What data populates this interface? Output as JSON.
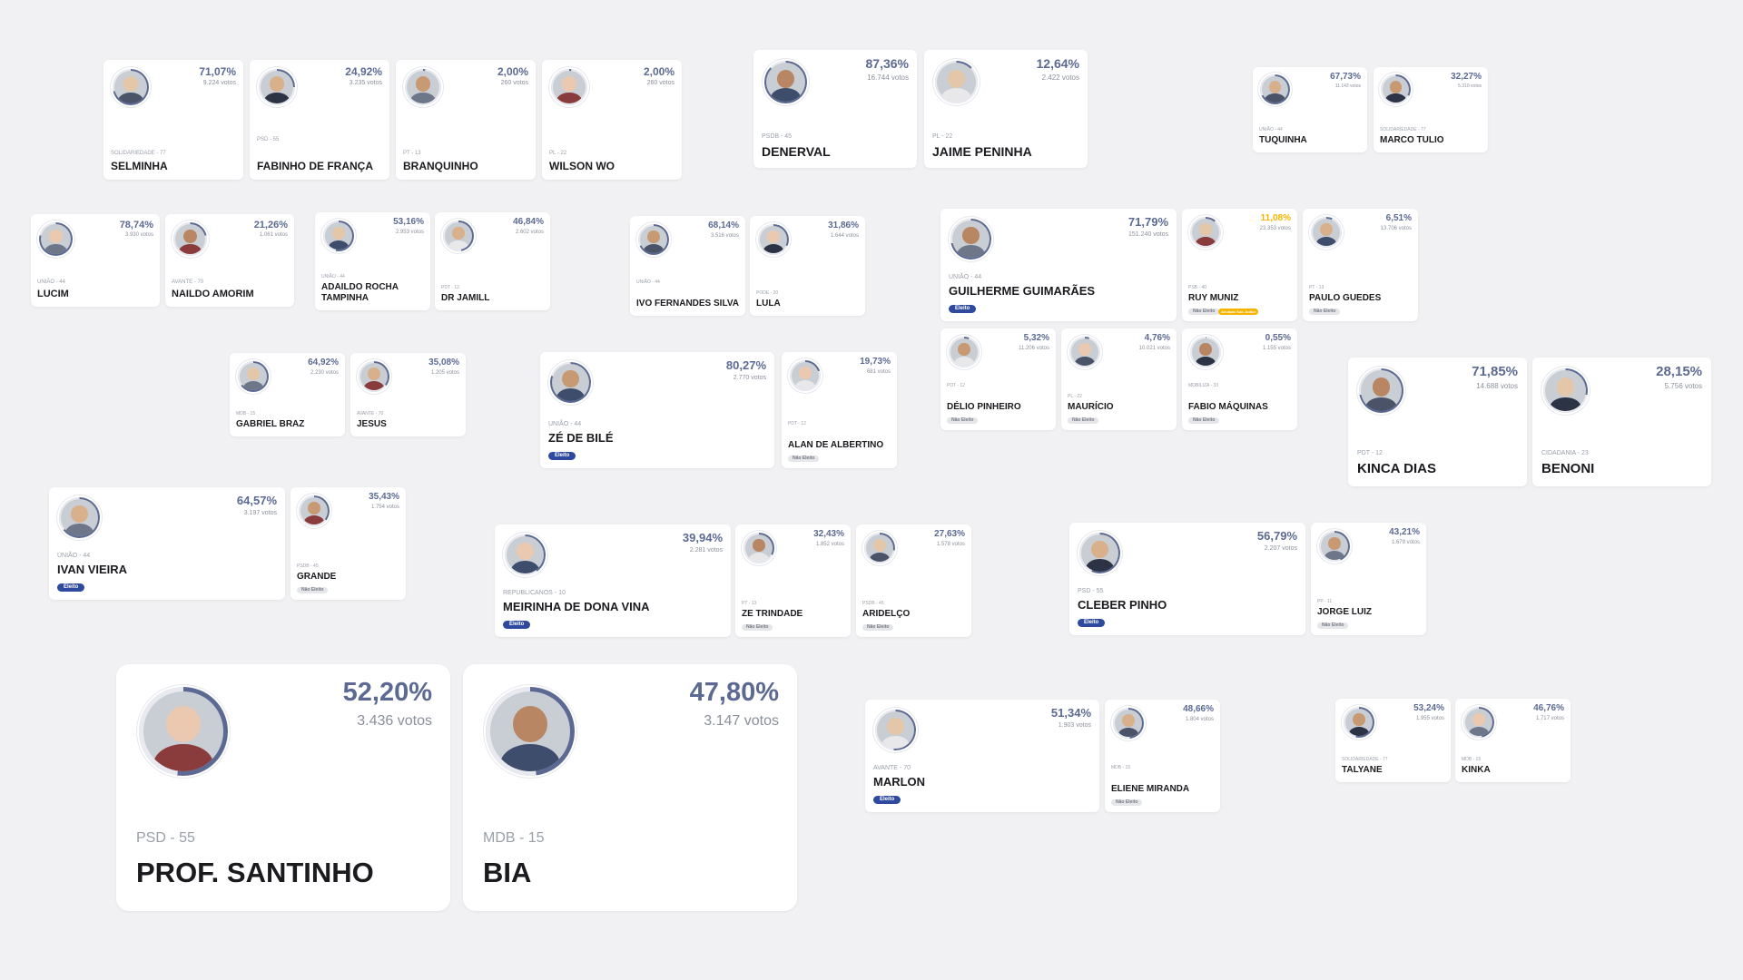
{
  "colors": {
    "background": "#f1f1f3",
    "card": "#ffffff",
    "percentage": "#5c6a93",
    "name": "#1b1b1f",
    "eleito_badge": "#2e4a9e",
    "nao_eleito_badge": "#e5e6ea",
    "amarelo": "#f4b400"
  },
  "cards": [
    {
      "id": "selminha",
      "name": "SELMINHA",
      "party": "SOLIDARIEDADE - 77",
      "pct": "71,07%",
      "votes": "9.224 votos",
      "share": 0.7107
    },
    {
      "id": "fabinho",
      "name": "FABINHO DE FRANÇA",
      "party": "PSD - 55",
      "pct": "24,92%",
      "votes": "3.235 votos",
      "share": 0.2492
    },
    {
      "id": "branquinho",
      "name": "BRANQUINHO",
      "party": "PT - 13",
      "pct": "2,00%",
      "votes": "260 votos",
      "share": 0.02
    },
    {
      "id": "wilson",
      "name": "WILSON WO",
      "party": "PL - 22",
      "pct": "2,00%",
      "votes": "260 votos",
      "share": 0.02
    },
    {
      "id": "denerval",
      "name": "DENERVAL",
      "party": "PSDB - 45",
      "pct": "87,36%",
      "votes": "16.744 votos",
      "share": 0.8736
    },
    {
      "id": "jaime",
      "name": "JAIME PENINHA",
      "party": "PL - 22",
      "pct": "12,64%",
      "votes": "2.422 votos",
      "share": 0.1264
    },
    {
      "id": "tuquinha",
      "name": "TUQUINHA",
      "party": "UNIÃO - 44",
      "pct": "67,73%",
      "votes": "11.143 votos",
      "share": 0.6773
    },
    {
      "id": "marco",
      "name": "MARCO TULIO",
      "party": "SOLIDARIEDADE - 77",
      "pct": "32,27%",
      "votes": "5.310 votos",
      "share": 0.3227
    },
    {
      "id": "lucim",
      "name": "LUCIM",
      "party": "UNIÃO - 44",
      "pct": "78,74%",
      "votes": "3.930 votos",
      "share": 0.7874
    },
    {
      "id": "naildo",
      "name": "NAILDO AMORIM",
      "party": "AVANTE - 70",
      "pct": "21,26%",
      "votes": "1.061 votos",
      "share": 0.2126
    },
    {
      "id": "adaildo",
      "name": "ADAILDO ROCHA TAMPINHA",
      "party": "UNIÃO - 44",
      "pct": "53,16%",
      "votes": "2.953 votos",
      "share": 0.5316
    },
    {
      "id": "drjamill",
      "name": "DR JAMILL",
      "party": "PDT - 12",
      "pct": "46,84%",
      "votes": "2.602 votos",
      "share": 0.4684
    },
    {
      "id": "ivo",
      "name": "IVO FERNANDES SILVA",
      "party": "UNIÃO - 44",
      "pct": "68,14%",
      "votes": "3.516 votos",
      "share": 0.6814
    },
    {
      "id": "lula",
      "name": "LULA",
      "party": "PODE - 20",
      "pct": "31,86%",
      "votes": "1.644 votos",
      "share": 0.3186
    },
    {
      "id": "guilherme",
      "name": "GUILHERME GUIMARÃES",
      "party": "UNIÃO - 44",
      "pct": "71,79%",
      "votes": "151.240 votos",
      "share": 0.7179,
      "badge": "Eleito"
    },
    {
      "id": "ruy",
      "name": "RUY MUNIZ",
      "party": "PSB - 40",
      "pct": "11,08%",
      "votes": "23.353 votos",
      "share": 0.1108,
      "badge": "Não Eleito",
      "badge2": "Anulado Sub Judice",
      "pct_color": "#f4b400"
    },
    {
      "id": "paulo",
      "name": "PAULO GUEDES",
      "party": "PT - 13",
      "pct": "6,51%",
      "votes": "13.706 votos",
      "share": 0.0651,
      "badge": "Não Eleito"
    },
    {
      "id": "delio",
      "name": "DÉLIO PINHEIRO",
      "party": "PDT - 12",
      "pct": "5,32%",
      "votes": "11.206 votos",
      "share": 0.0532,
      "badge": "Não Eleito"
    },
    {
      "id": "mauricio",
      "name": "MAURÍCIO",
      "party": "PL - 22",
      "pct": "4,76%",
      "votes": "10.021 votos",
      "share": 0.0476,
      "badge": "Não Eleito"
    },
    {
      "id": "fabio",
      "name": "FABIO MÁQUINAS",
      "party": "MOBILIZA - 33",
      "pct": "0,55%",
      "votes": "1.155 votos",
      "share": 0.0055,
      "badge": "Não Eleito"
    },
    {
      "id": "gabriel",
      "name": "GABRIEL BRAZ",
      "party": "MDB - 15",
      "pct": "64,92%",
      "votes": "2.230 votos",
      "share": 0.6492
    },
    {
      "id": "jesus",
      "name": "JESUS",
      "party": "AVANTE - 70",
      "pct": "35,08%",
      "votes": "1.205 votos",
      "share": 0.3508
    },
    {
      "id": "zedebile",
      "name": "ZÉ DE BILÉ",
      "party": "UNIÃO - 44",
      "pct": "80,27%",
      "votes": "2.770 votos",
      "share": 0.8027,
      "badge": "Eleito"
    },
    {
      "id": "alan",
      "name": "ALAN DE ALBERTINO",
      "party": "PDT - 12",
      "pct": "19,73%",
      "votes": "681 votos",
      "share": 0.1973,
      "badge": "Não Eleito"
    },
    {
      "id": "kinca",
      "name": "KINCA DIAS",
      "party": "PDT - 12",
      "pct": "71,85%",
      "votes": "14.688 votos",
      "share": 0.7185
    },
    {
      "id": "benoni",
      "name": "BENONI",
      "party": "CIDADANIA - 23",
      "pct": "28,15%",
      "votes": "5.756 votos",
      "share": 0.2815
    },
    {
      "id": "ivan",
      "name": "IVAN VIEIRA",
      "party": "UNIÃO - 44",
      "pct": "64,57%",
      "votes": "3.197 votos",
      "share": 0.6457,
      "badge": "Eleito"
    },
    {
      "id": "grande",
      "name": "GRANDE",
      "party": "PSDB - 45",
      "pct": "35,43%",
      "votes": "1.754 votos",
      "share": 0.3543,
      "badge": "Não Eleito"
    },
    {
      "id": "meirinha",
      "name": "MEIRINHA DE DONA VINA",
      "party": "REPUBLICANOS - 10",
      "pct": "39,94%",
      "votes": "2.281 votos",
      "share": 0.3994,
      "badge": "Eleito"
    },
    {
      "id": "trindade",
      "name": "ZE TRINDADE",
      "party": "PT - 13",
      "pct": "32,43%",
      "votes": "1.852 votos",
      "share": 0.3243,
      "badge": "Não Eleito"
    },
    {
      "id": "aridelco",
      "name": "ARIDELÇO",
      "party": "PSDB - 45",
      "pct": "27,63%",
      "votes": "1.578 votos",
      "share": 0.2763,
      "badge": "Não Eleito"
    },
    {
      "id": "cleber",
      "name": "CLEBER PINHO",
      "party": "PSD - 55",
      "pct": "56,79%",
      "votes": "2.207 votos",
      "share": 0.5679,
      "badge": "Eleito"
    },
    {
      "id": "jorge",
      "name": "JORGE LUIZ",
      "party": "PP - 11",
      "pct": "43,21%",
      "votes": "1.679 votos",
      "share": 0.4321,
      "badge": "Não Eleito"
    },
    {
      "id": "santinho",
      "name": "PROF. SANTINHO",
      "party": "PSD - 55",
      "pct": "52,20%",
      "votes": "3.436 votos",
      "share": 0.522
    },
    {
      "id": "bia",
      "name": "BIA",
      "party": "MDB - 15",
      "pct": "47,80%",
      "votes": "3.147 votos",
      "share": 0.478
    },
    {
      "id": "marlon",
      "name": "MARLON",
      "party": "AVANTE - 70",
      "pct": "51,34%",
      "votes": "1.903 votos",
      "share": 0.5134,
      "badge": "Eleito"
    },
    {
      "id": "eliene",
      "name": "ELIENE MIRANDA",
      "party": "MDB - 15",
      "pct": "48,66%",
      "votes": "1.804 votos",
      "share": 0.4866,
      "badge": "Não Eleito"
    },
    {
      "id": "talyane",
      "name": "TALYANE",
      "party": "SOLIDARIEDADE - 77",
      "pct": "53,24%",
      "votes": "1.955 votos",
      "share": 0.5324
    },
    {
      "id": "kinka",
      "name": "KINKA",
      "party": "MDB - 15",
      "pct": "46,76%",
      "votes": "1.717 votos",
      "share": 0.4676
    }
  ]
}
